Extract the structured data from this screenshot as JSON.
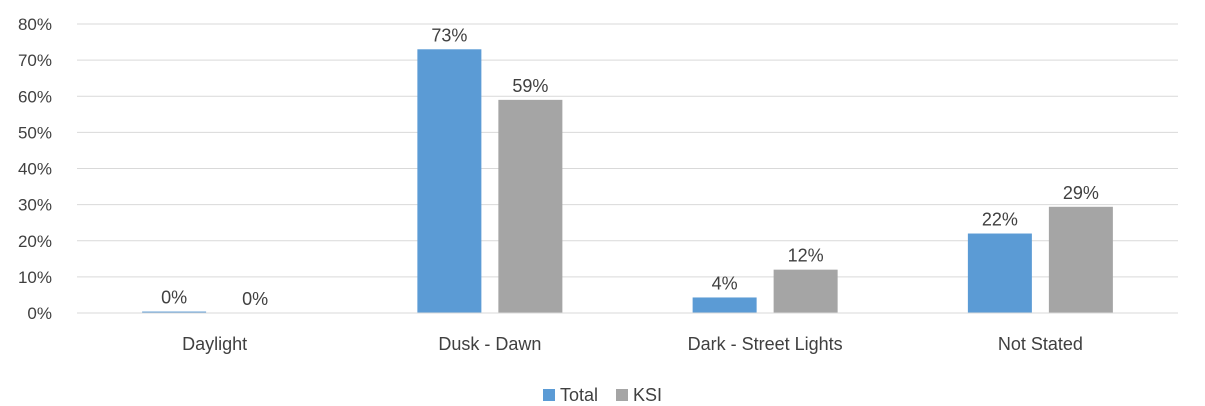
{
  "chart_data": {
    "type": "bar",
    "categories": [
      "Daylight",
      "Dusk - Dawn",
      "Dark - Street Lights",
      "Not Stated"
    ],
    "series": [
      {
        "name": "Total",
        "values": [
          0.4,
          73,
          4.3,
          22
        ],
        "labels": [
          "0%",
          "73%",
          "4%",
          "22%"
        ],
        "color": "#5B9BD5"
      },
      {
        "name": "KSI",
        "values": [
          0,
          59,
          12,
          29.4
        ],
        "labels": [
          "0%",
          "59%",
          "12%",
          "29%"
        ],
        "color": "#A5A5A5"
      }
    ],
    "yticks": [
      "0%",
      "10%",
      "20%",
      "30%",
      "40%",
      "50%",
      "60%",
      "70%",
      "80%"
    ],
    "ylim": [
      0,
      80
    ],
    "grid": true,
    "gridColor": "#D9D9D9",
    "legend_position": "bottom"
  }
}
